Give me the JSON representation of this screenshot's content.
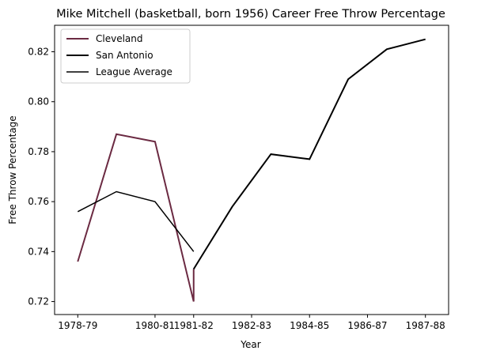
{
  "chart_data": {
    "type": "line",
    "title": "Mike Mitchell (basketball, born 1956) Career Free Throw Percentage",
    "xlabel": "Year",
    "ylabel": "Free Throw Percentage",
    "xlim": [
      -0.6,
      9.6
    ],
    "ylim": [
      0.7148,
      0.8306
    ],
    "xticks": [
      {
        "pos": 0,
        "label": "1978-79"
      },
      {
        "pos": 2,
        "label": "1980-81"
      },
      {
        "pos": 3,
        "label": "1981-82"
      },
      {
        "pos": 4.5,
        "label": "1982-83"
      },
      {
        "pos": 6,
        "label": "1984-85"
      },
      {
        "pos": 7.5,
        "label": "1986-87"
      },
      {
        "pos": 9,
        "label": "1987-88"
      }
    ],
    "yticks": [
      {
        "value": 0.72,
        "label": "0.72"
      },
      {
        "value": 0.74,
        "label": "0.74"
      },
      {
        "value": 0.76,
        "label": "0.76"
      },
      {
        "value": 0.78,
        "label": "0.78"
      },
      {
        "value": 0.8,
        "label": "0.80"
      },
      {
        "value": 0.82,
        "label": "0.82"
      }
    ],
    "grid": false,
    "legend_position": "top-left",
    "series": [
      {
        "name": "Cleveland",
        "color": "#6b2a42",
        "line_width": "thick",
        "points": [
          [
            0,
            0.736
          ],
          [
            1,
            0.787
          ],
          [
            2,
            0.784
          ],
          [
            3,
            0.72
          ],
          [
            3,
            0.733
          ]
        ]
      },
      {
        "name": "San Antonio",
        "color": "#000000",
        "line_width": "thick",
        "points": [
          [
            3,
            0.733
          ],
          [
            4,
            0.758
          ],
          [
            5,
            0.779
          ],
          [
            6,
            0.777
          ],
          [
            7,
            0.809
          ],
          [
            8,
            0.821
          ],
          [
            9,
            0.825
          ]
        ]
      },
      {
        "name": "League Average",
        "color": "#000000",
        "line_width": "thin",
        "points": [
          [
            0,
            0.756
          ],
          [
            1,
            0.764
          ],
          [
            2,
            0.76
          ],
          [
            3,
            0.74
          ]
        ]
      }
    ]
  }
}
